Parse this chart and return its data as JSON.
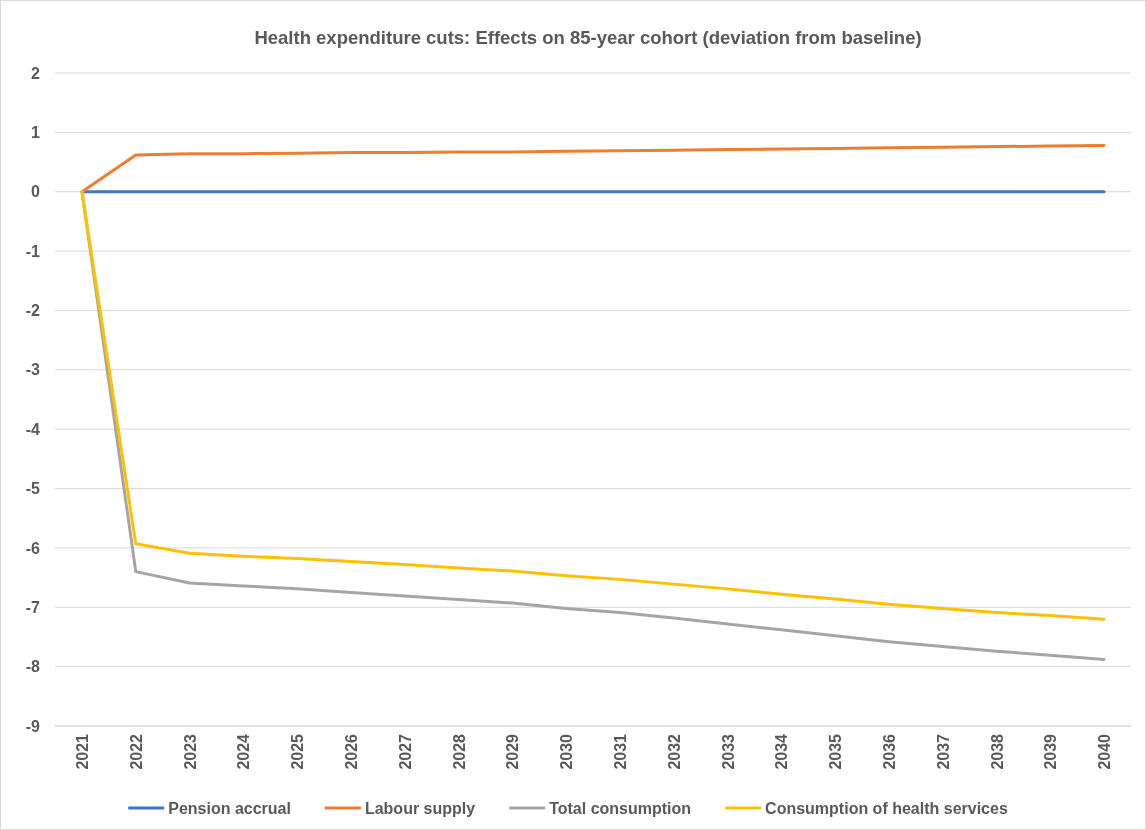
{
  "chart_data": {
    "type": "line",
    "title": "Health expenditure cuts: Effects on 85-year cohort (deviation from baseline)",
    "categories": [
      "2021",
      "2022",
      "2023",
      "2024",
      "2025",
      "2026",
      "2027",
      "2028",
      "2029",
      "2030",
      "2031",
      "2032",
      "2033",
      "2034",
      "2035",
      "2036",
      "2037",
      "2038",
      "2039",
      "2040"
    ],
    "series": [
      {
        "name": "Pension accrual",
        "color": "#4472c4",
        "values": [
          0,
          0,
          0,
          0,
          0,
          0,
          0,
          0,
          0,
          0,
          0,
          0,
          0,
          0,
          0,
          0,
          0,
          0,
          0,
          0
        ]
      },
      {
        "name": "Labour supply",
        "color": "#ed7d31",
        "values": [
          0,
          0.62,
          0.64,
          0.64,
          0.65,
          0.66,
          0.66,
          0.67,
          0.67,
          0.68,
          0.69,
          0.7,
          0.71,
          0.72,
          0.73,
          0.74,
          0.75,
          0.76,
          0.77,
          0.78
        ]
      },
      {
        "name": "Total consumption",
        "color": "#a5a5a5",
        "values": [
          0,
          -6.4,
          -6.59,
          -6.64,
          -6.69,
          -6.75,
          -6.81,
          -6.87,
          -6.93,
          -7.02,
          -7.09,
          -7.18,
          -7.28,
          -7.38,
          -7.48,
          -7.58,
          -7.66,
          -7.74,
          -7.81,
          -7.88
        ]
      },
      {
        "name": "Consumption of health services",
        "color": "#ffc000",
        "values": [
          0,
          -5.93,
          -6.09,
          -6.14,
          -6.18,
          -6.23,
          -6.28,
          -6.34,
          -6.39,
          -6.47,
          -6.53,
          -6.61,
          -6.69,
          -6.78,
          -6.86,
          -6.95,
          -7.02,
          -7.09,
          -7.14,
          -7.2
        ]
      }
    ],
    "ylim": [
      -9,
      2
    ],
    "yticks": [
      -9,
      -8,
      -7,
      -6,
      -5,
      -4,
      -3,
      -2,
      -1,
      0,
      1,
      2
    ],
    "grid": "y",
    "legend": "bottom",
    "marker": "none",
    "line_style": "solid"
  }
}
